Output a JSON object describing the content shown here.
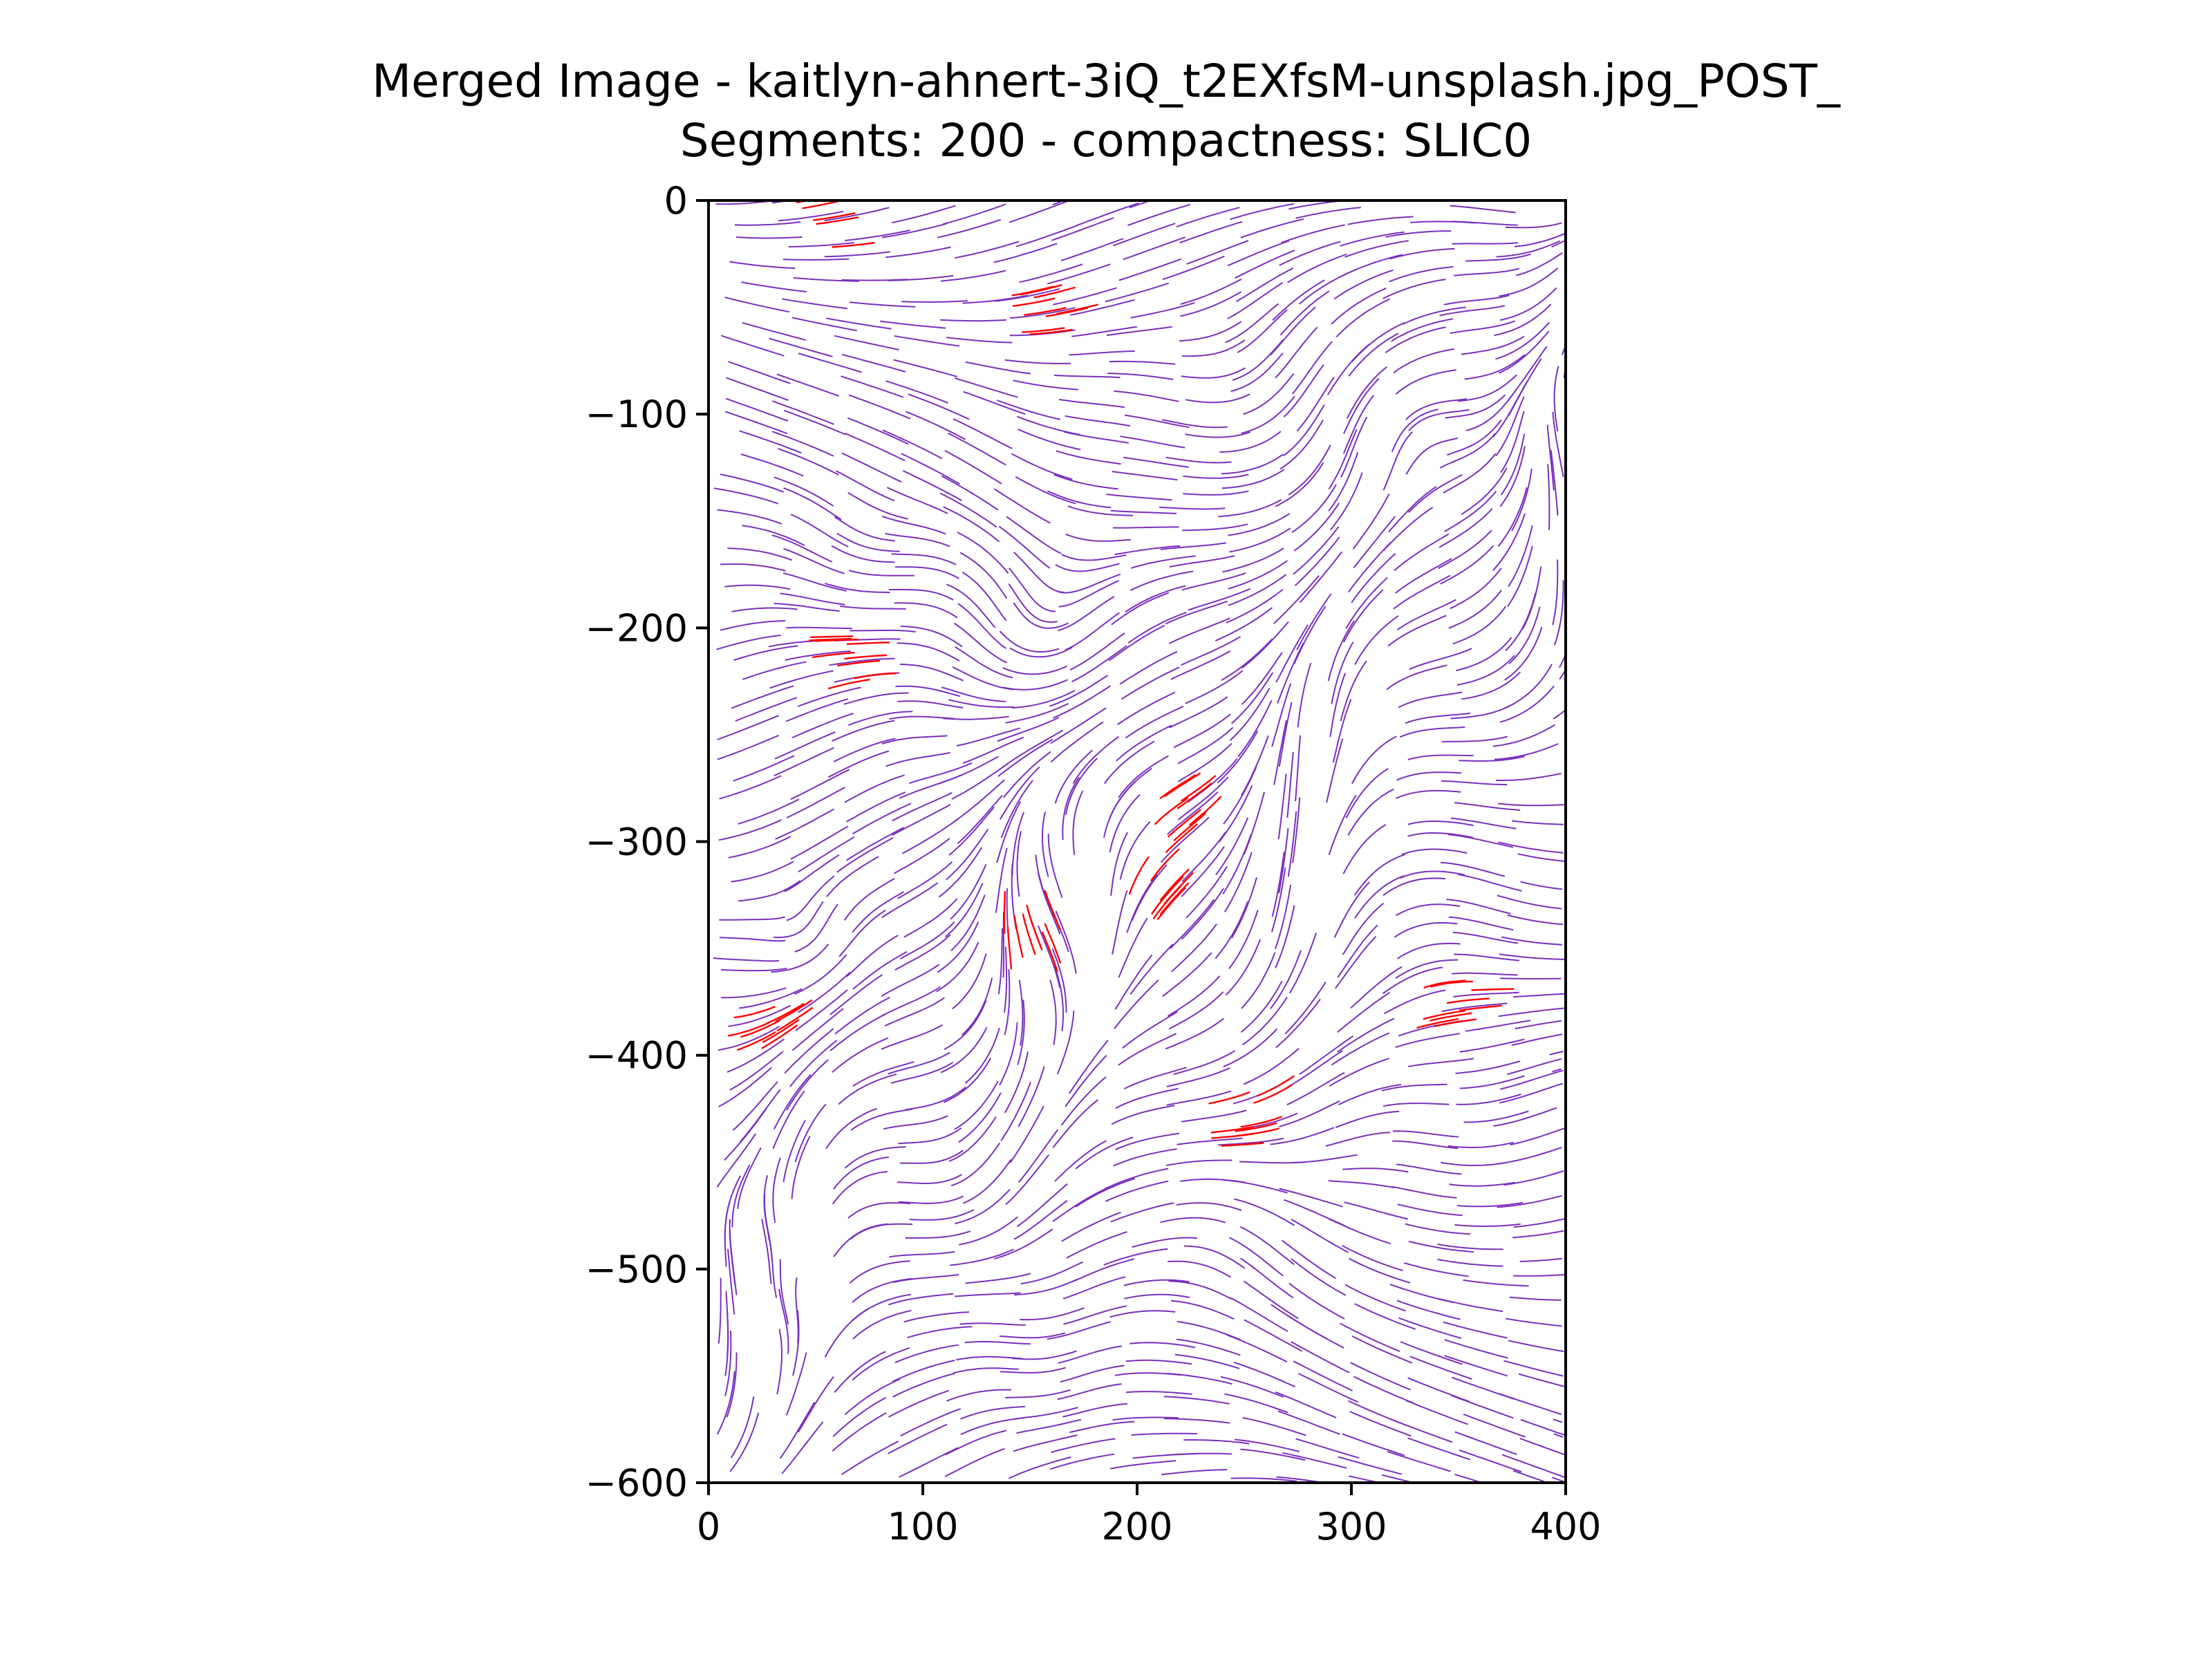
{
  "chart_data": {
    "type": "streamplot",
    "title_line1": "Merged Image - kaitlyn-ahnert-3iQ_t2EXfsM-unsplash.jpg_POST_",
    "title_line2": "Segments: 200 - compactness: SLIC0",
    "xlim": [
      0,
      400
    ],
    "ylim": [
      -600,
      0
    ],
    "x_ticks": [
      0,
      100,
      200,
      300,
      400
    ],
    "y_ticks": [
      0,
      -100,
      -200,
      -300,
      -400,
      -500,
      -600
    ],
    "x_tick_labels": [
      "0",
      "100",
      "200",
      "300",
      "400"
    ],
    "y_tick_labels": [
      "0",
      "−100",
      "−200",
      "−300",
      "−400",
      "−500",
      "−600"
    ],
    "grid": false,
    "series": [
      {
        "color": "#7b2fbe"
      },
      {
        "color": "#ff0000"
      }
    ],
    "highlight_regions": [
      {
        "x": 55,
        "y": -8
      },
      {
        "x": 155,
        "y": -55
      },
      {
        "x": 55,
        "y": -215
      },
      {
        "x": 218,
        "y": -292
      },
      {
        "x": 200,
        "y": -325
      },
      {
        "x": 152,
        "y": -355
      },
      {
        "x": 22,
        "y": -393
      },
      {
        "x": 342,
        "y": -380
      },
      {
        "x": 245,
        "y": -432
      }
    ]
  }
}
